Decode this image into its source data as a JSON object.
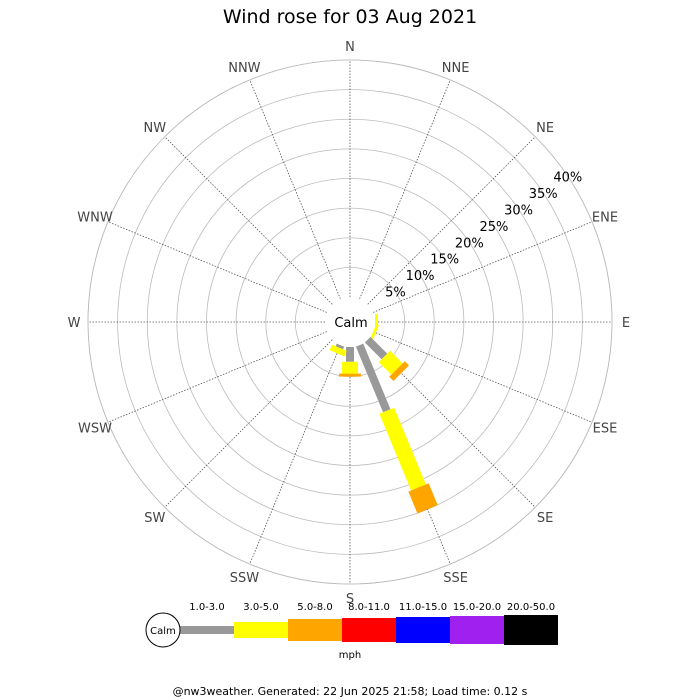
{
  "chart_data": {
    "type": "wind-rose",
    "title": "Wind rose for 03 Aug 2021",
    "directions": [
      "N",
      "NNE",
      "NE",
      "ENE",
      "E",
      "ESE",
      "SE",
      "SSE",
      "S",
      "SSW",
      "SW",
      "WSW",
      "W",
      "WNW",
      "NW",
      "NNW"
    ],
    "radial_ticks": [
      "5%",
      "10%",
      "15%",
      "20%",
      "25%",
      "30%",
      "35%",
      "40%"
    ],
    "radial_max": 40,
    "calm_label": "Calm",
    "speed_bins": [
      {
        "label": "1.0-3.0",
        "color": "#999999"
      },
      {
        "label": "3.0-5.0",
        "color": "#ffff00"
      },
      {
        "label": "5.0-8.0",
        "color": "#ffa500"
      },
      {
        "label": "8.0-11.0",
        "color": "#ff0000"
      },
      {
        "label": "11.0-15.0",
        "color": "#0000ff"
      },
      {
        "label": "15.0-20.0",
        "color": "#a020f0"
      },
      {
        "label": "20.0-50.0",
        "color": "#000000"
      }
    ],
    "unit": "mph",
    "series": [
      {
        "direction": "ESE",
        "values": [
          0.0,
          0.5,
          0.0
        ]
      },
      {
        "direction": "E",
        "values": [
          0.0,
          0.5,
          0.0
        ]
      },
      {
        "direction": "SE",
        "values": [
          4.0,
          3.0,
          1.0
        ]
      },
      {
        "direction": "SSE",
        "values": [
          12.0,
          14.0,
          4.0
        ]
      },
      {
        "direction": "S",
        "values": [
          2.5,
          2.0,
          0.5
        ]
      },
      {
        "direction": "SSW",
        "values": [
          0.5,
          1.0,
          0.0
        ]
      }
    ]
  },
  "footer": "@nw3weather. Generated: 22 Jun 2025 21:58; Load time: 0.12 s"
}
